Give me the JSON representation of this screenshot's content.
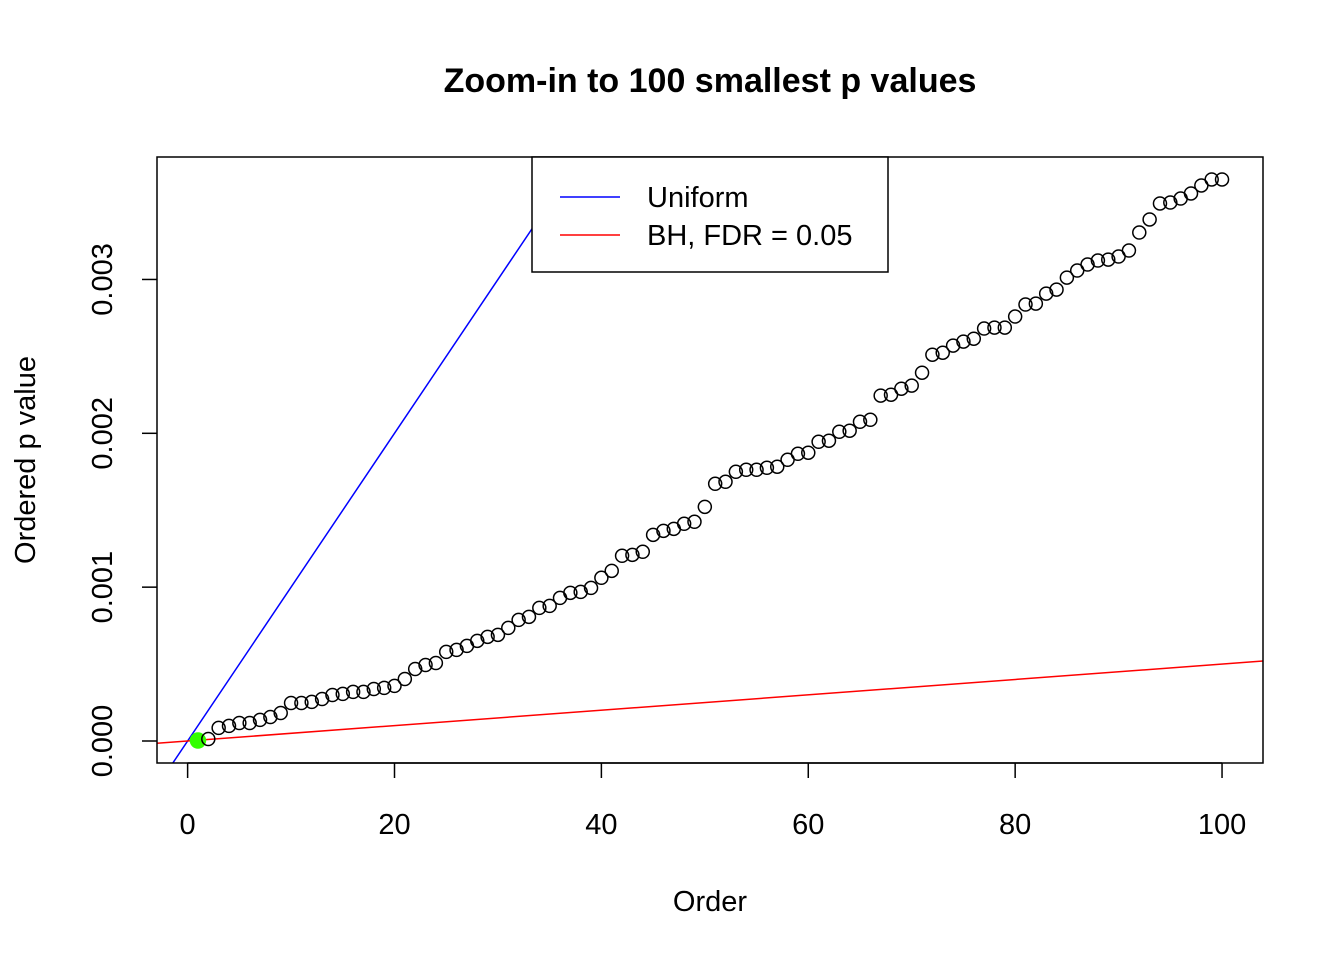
{
  "chart_data": {
    "type": "scatter",
    "title": "Zoom-in to 100 smallest p values",
    "xlabel": "Order",
    "ylabel": "Ordered p value",
    "xlim": [
      -2.96,
      103.96
    ],
    "ylim": [
      -0.000143,
      0.003796
    ],
    "x_ticks": [
      0,
      20,
      40,
      60,
      80,
      100
    ],
    "x_tick_labels": [
      "0",
      "20",
      "40",
      "60",
      "80",
      "100"
    ],
    "y_ticks": [
      0,
      0.001,
      0.002,
      0.003
    ],
    "y_tick_labels": [
      "0.000",
      "0.001",
      "0.002",
      "0.003"
    ],
    "grid": false,
    "legend": {
      "placement": "top-center",
      "entries": [
        {
          "label": "Uniform",
          "color": "#0000ff"
        },
        {
          "label": "BH, FDR = 0.05",
          "color": "#ff0000"
        }
      ]
    },
    "lines": [
      {
        "name": "Uniform",
        "intercept": 0,
        "slope": 0.0001,
        "color": "#0000ff"
      },
      {
        "name": "BH, FDR = 0.05",
        "intercept": 0,
        "slope": 5e-06,
        "color": "#ff0000"
      }
    ],
    "highlight": {
      "x": 1,
      "color": "#33ff00"
    },
    "points": {
      "x_start": 1,
      "y": [
        3e-06,
        1.3e-05,
        8.5e-05,
        9.8e-05,
        0.000117,
        0.000117,
        0.000137,
        0.000156,
        0.000182,
        0.000247,
        0.000247,
        0.000254,
        0.000273,
        0.000299,
        0.000306,
        0.000319,
        0.000319,
        0.000338,
        0.000345,
        0.000358,
        0.000403,
        0.000468,
        0.000494,
        0.000507,
        0.000579,
        0.000592,
        0.000618,
        0.000651,
        0.000677,
        0.00069,
        0.000735,
        0.000787,
        0.000807,
        0.000865,
        0.000878,
        0.00093,
        0.000963,
        0.000969,
        0.000995,
        0.001061,
        0.001106,
        0.001204,
        0.00121,
        0.00123,
        0.00134,
        0.001366,
        0.001379,
        0.001412,
        0.001425,
        0.001522,
        0.001672,
        0.001685,
        0.00175,
        0.001763,
        0.001763,
        0.001776,
        0.001783,
        0.001828,
        0.001867,
        0.001874,
        0.001945,
        0.001952,
        0.00201,
        0.002017,
        0.002075,
        0.002088,
        0.002245,
        0.002251,
        0.00229,
        0.00231,
        0.002394,
        0.002511,
        0.002524,
        0.00257,
        0.002596,
        0.002615,
        0.002681,
        0.002687,
        0.002687,
        0.002759,
        0.002837,
        0.002843,
        0.002908,
        0.002934,
        0.003012,
        0.003058,
        0.003097,
        0.003123,
        0.003129,
        0.003149,
        0.003188,
        0.003305,
        0.00339,
        0.003494,
        0.0035,
        0.003526,
        0.003559,
        0.003611,
        0.00365,
        0.00365
      ]
    }
  }
}
